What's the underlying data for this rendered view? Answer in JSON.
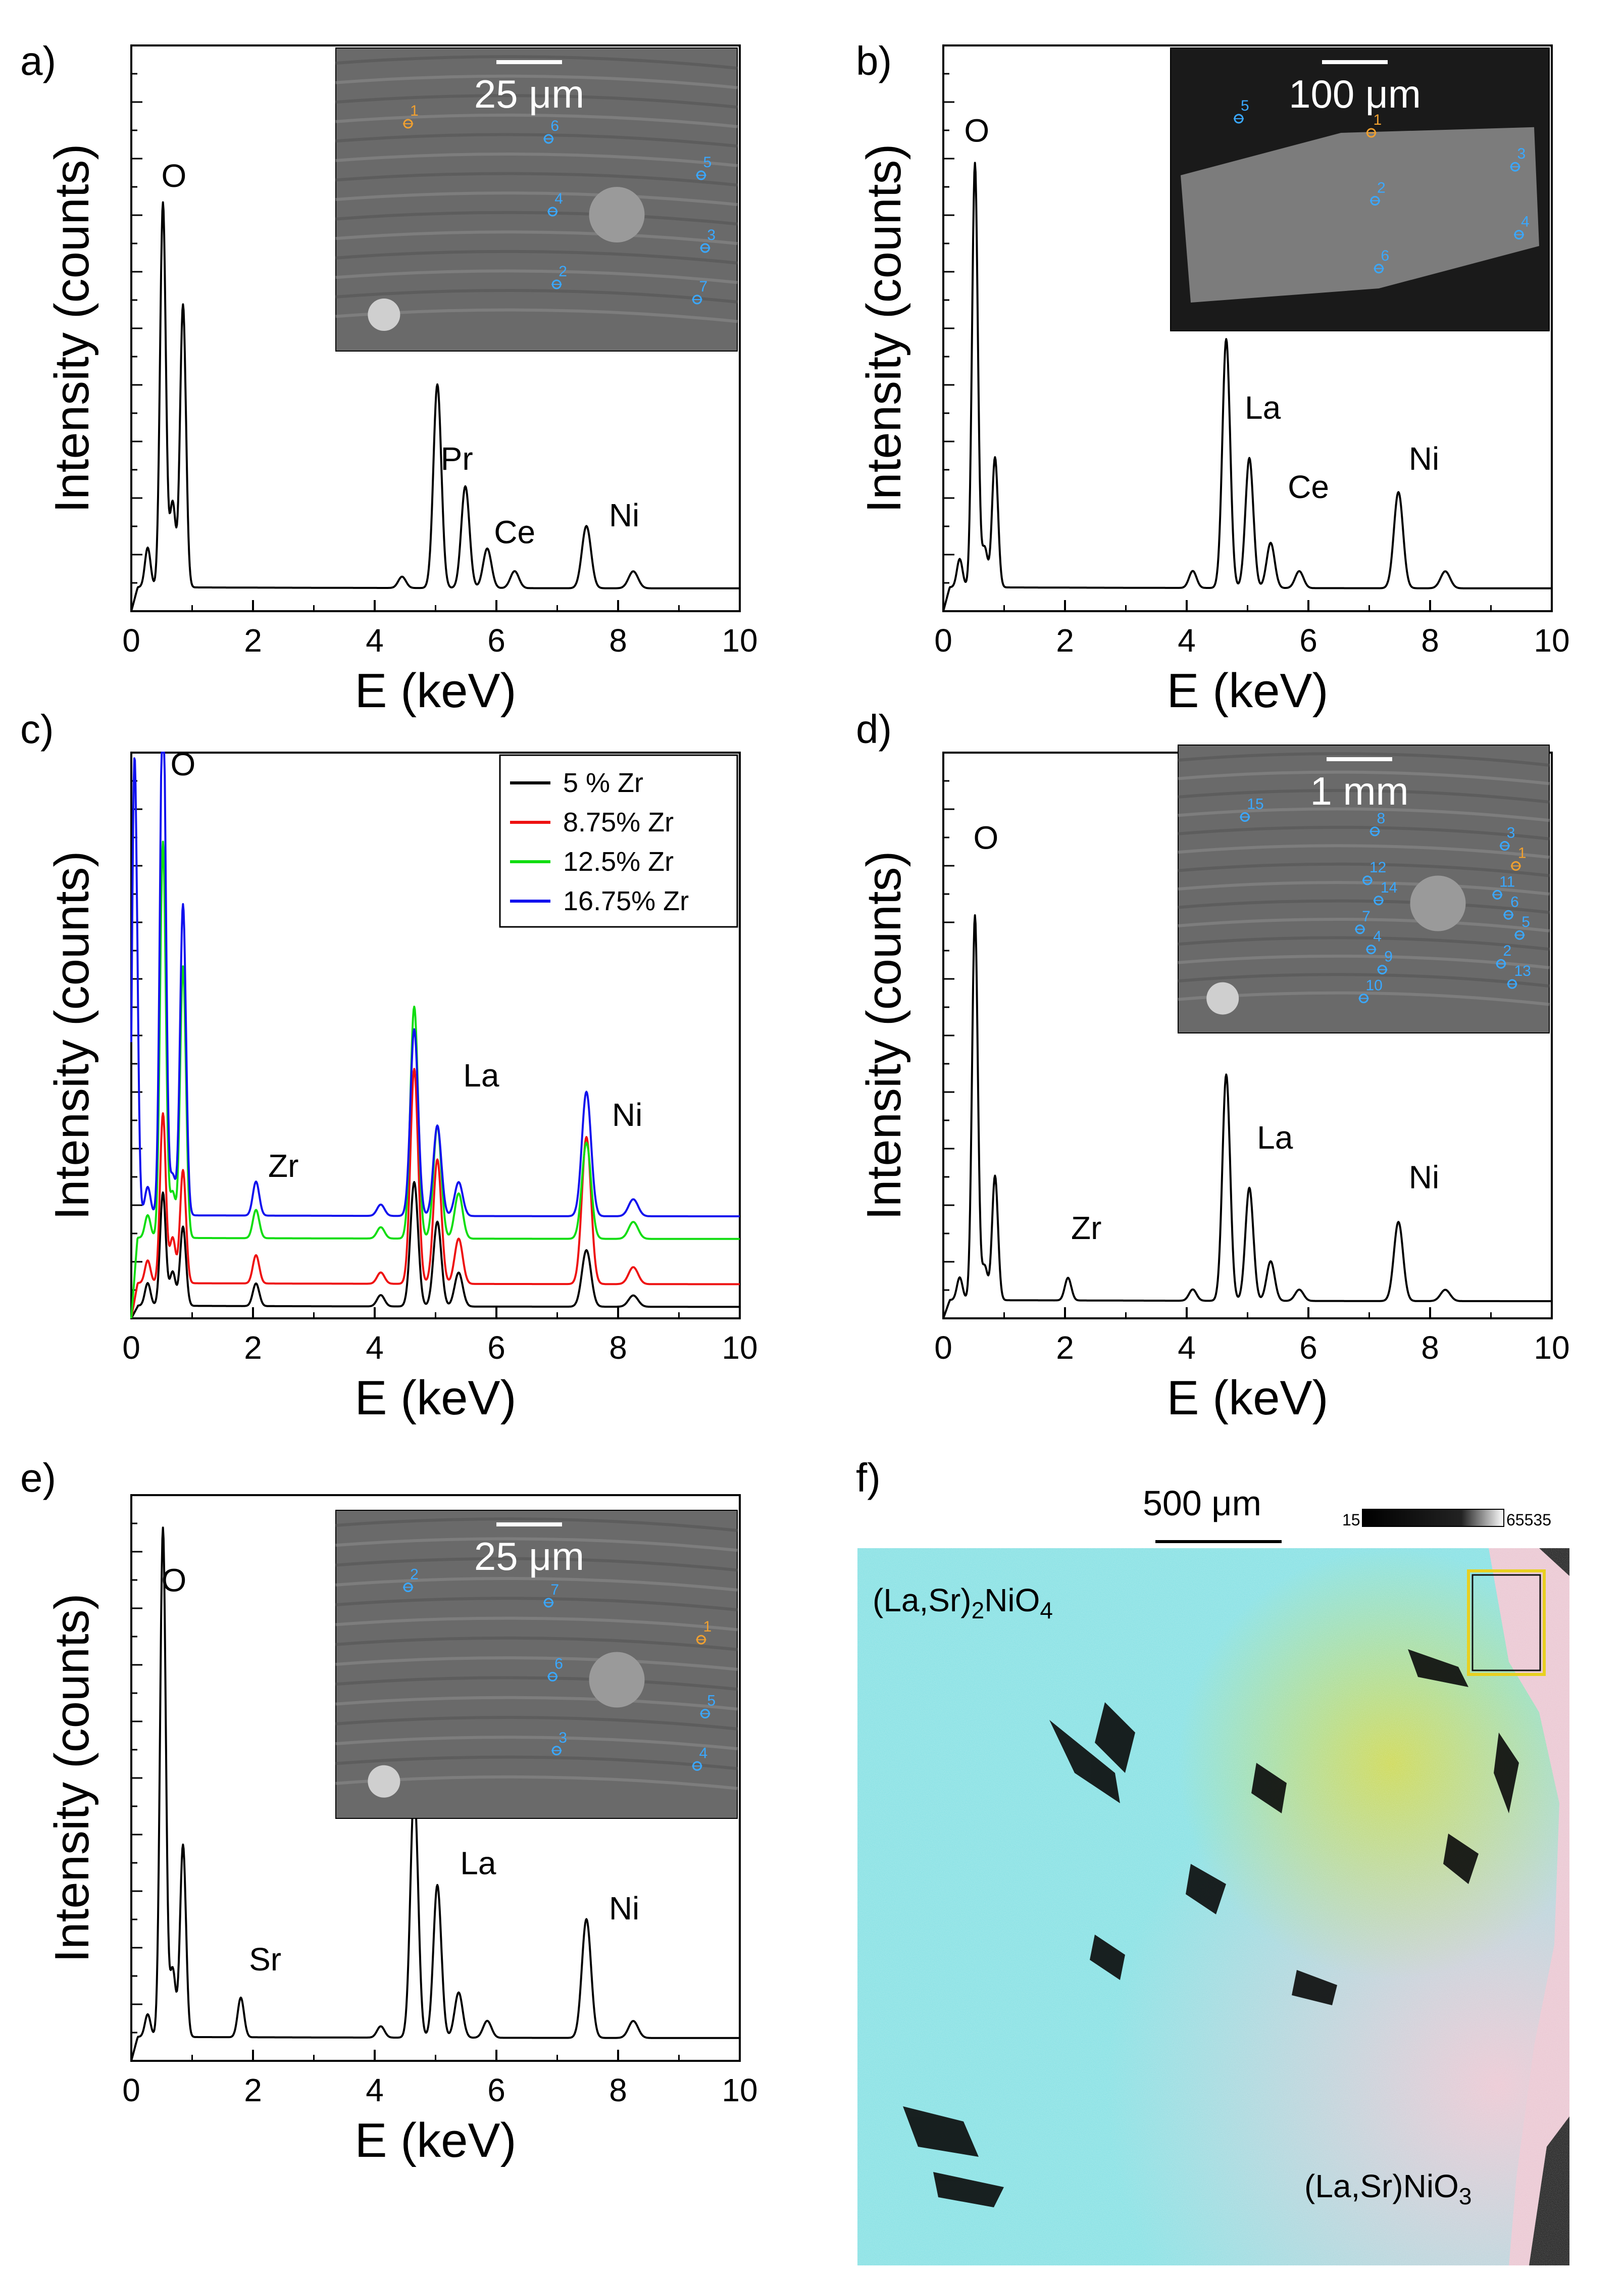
{
  "panels": [
    {
      "id": "a",
      "letter": "a)",
      "chart": {
        "type": "line",
        "xlabel": "E (keV)",
        "ylabel": "Intensity (counts)",
        "xlim": [
          0,
          10
        ],
        "xticks": [
          0,
          2,
          4,
          6,
          8,
          10
        ],
        "ylim": [
          0,
          100
        ],
        "peaks": [
          {
            "e": 0.27,
            "h": 7
          },
          {
            "e": 0.52,
            "h": 68
          },
          {
            "e": 0.68,
            "h": 15
          },
          {
            "e": 0.85,
            "h": 50
          },
          {
            "e": 4.45,
            "h": 2
          },
          {
            "e": 5.03,
            "h": 36
          },
          {
            "e": 5.49,
            "h": 18
          },
          {
            "e": 5.85,
            "h": 7
          },
          {
            "e": 6.3,
            "h": 3
          },
          {
            "e": 7.48,
            "h": 11
          },
          {
            "e": 8.25,
            "h": 3
          }
        ],
        "baseline": 4,
        "annotations": [
          {
            "text": "O",
            "x": 0.7,
            "y": 75
          },
          {
            "text": "Pr",
            "x": 5.35,
            "y": 25
          },
          {
            "text": "Ce",
            "x": 6.3,
            "y": 12
          },
          {
            "text": "Ni",
            "x": 8.1,
            "y": 15
          }
        ]
      },
      "inset": {
        "scale": "25 μm",
        "markers": [
          {
            "n": "1",
            "color": "#f0a030"
          },
          {
            "n": "2",
            "color": "#3aa8ff"
          },
          {
            "n": "3",
            "color": "#3aa8ff"
          },
          {
            "n": "4",
            "color": "#3aa8ff"
          },
          {
            "n": "5",
            "color": "#3aa8ff"
          },
          {
            "n": "6",
            "color": "#3aa8ff"
          },
          {
            "n": "7",
            "color": "#3aa8ff"
          }
        ]
      }
    },
    {
      "id": "b",
      "letter": "b)",
      "chart": {
        "type": "line",
        "xlabel": "E (keV)",
        "ylabel": "Intensity (counts)",
        "xlim": [
          0,
          10
        ],
        "xticks": [
          0,
          2,
          4,
          6,
          8,
          10
        ],
        "ylim": [
          0,
          100
        ],
        "peaks": [
          {
            "e": 0.27,
            "h": 5
          },
          {
            "e": 0.52,
            "h": 75
          },
          {
            "e": 0.68,
            "h": 7
          },
          {
            "e": 0.85,
            "h": 23
          },
          {
            "e": 4.1,
            "h": 3
          },
          {
            "e": 4.65,
            "h": 44
          },
          {
            "e": 5.03,
            "h": 23
          },
          {
            "e": 5.38,
            "h": 8
          },
          {
            "e": 5.85,
            "h": 3
          },
          {
            "e": 7.48,
            "h": 17
          },
          {
            "e": 8.25,
            "h": 3
          }
        ],
        "baseline": 4,
        "annotations": [
          {
            "text": "O",
            "x": 0.55,
            "y": 83
          },
          {
            "text": "La",
            "x": 5.25,
            "y": 34
          },
          {
            "text": "Ce",
            "x": 6.0,
            "y": 20
          },
          {
            "text": "Ni",
            "x": 7.9,
            "y": 25
          }
        ]
      },
      "inset": {
        "scale": "100 μm",
        "markers": [
          {
            "n": "5",
            "color": "#3aa8ff"
          },
          {
            "n": "6",
            "color": "#3aa8ff"
          },
          {
            "n": "4",
            "color": "#3aa8ff"
          },
          {
            "n": "2",
            "color": "#3aa8ff"
          },
          {
            "n": "3",
            "color": "#3aa8ff"
          },
          {
            "n": "1",
            "color": "#f0a030"
          }
        ]
      }
    },
    {
      "id": "c",
      "letter": "c)",
      "chart": {
        "type": "line",
        "xlabel": "E (keV)",
        "ylabel": "Intensity (counts)",
        "xlim": [
          0,
          10
        ],
        "xticks": [
          0,
          2,
          4,
          6,
          8,
          10
        ],
        "ylim": [
          0,
          100
        ],
        "series": [
          {
            "name": "5 % Zr",
            "color": "#000000",
            "offset": 2,
            "peaks": [
              {
                "e": 0.27,
                "h": 4
              },
              {
                "e": 0.52,
                "h": 20
              },
              {
                "e": 0.68,
                "h": 6
              },
              {
                "e": 0.85,
                "h": 14
              },
              {
                "e": 2.05,
                "h": 4
              },
              {
                "e": 4.1,
                "h": 2
              },
              {
                "e": 4.65,
                "h": 22
              },
              {
                "e": 5.03,
                "h": 15
              },
              {
                "e": 5.38,
                "h": 6
              },
              {
                "e": 7.48,
                "h": 10
              },
              {
                "e": 8.25,
                "h": 2
              }
            ]
          },
          {
            "name": "8.75% Zr",
            "color": "#ee1111",
            "offset": 6,
            "peaks": [
              {
                "e": 0.27,
                "h": 4
              },
              {
                "e": 0.52,
                "h": 30
              },
              {
                "e": 0.68,
                "h": 8
              },
              {
                "e": 0.85,
                "h": 20
              },
              {
                "e": 2.05,
                "h": 5
              },
              {
                "e": 4.1,
                "h": 2
              },
              {
                "e": 4.65,
                "h": 38
              },
              {
                "e": 5.03,
                "h": 22
              },
              {
                "e": 5.38,
                "h": 8
              },
              {
                "e": 7.48,
                "h": 26
              },
              {
                "e": 8.25,
                "h": 3
              }
            ]
          },
          {
            "name": "12.5% Zr",
            "color": "#11dd11",
            "offset": 14,
            "peaks": [
              {
                "e": 0.27,
                "h": 4
              },
              {
                "e": 0.52,
                "h": 70
              },
              {
                "e": 0.68,
                "h": 8
              },
              {
                "e": 0.85,
                "h": 48
              },
              {
                "e": 2.05,
                "h": 5
              },
              {
                "e": 4.1,
                "h": 2
              },
              {
                "e": 4.65,
                "h": 41
              },
              {
                "e": 5.03,
                "h": 20
              },
              {
                "e": 5.38,
                "h": 8
              },
              {
                "e": 7.48,
                "h": 17
              },
              {
                "e": 8.25,
                "h": 3
              }
            ]
          },
          {
            "name": "16.75% Zr",
            "color": "#1111ee",
            "offset": 18,
            "peaks": [
              {
                "e": 0.05,
                "h": 90
              },
              {
                "e": 0.27,
                "h": 5
              },
              {
                "e": 0.52,
                "h": 95
              },
              {
                "e": 0.68,
                "h": 7
              },
              {
                "e": 0.85,
                "h": 55
              },
              {
                "e": 2.05,
                "h": 6
              },
              {
                "e": 4.1,
                "h": 2
              },
              {
                "e": 4.65,
                "h": 33
              },
              {
                "e": 5.03,
                "h": 16
              },
              {
                "e": 5.38,
                "h": 6
              },
              {
                "e": 7.48,
                "h": 22
              },
              {
                "e": 8.25,
                "h": 3
              }
            ]
          }
        ],
        "annotations": [
          {
            "text": "O",
            "x": 0.85,
            "y": 96
          },
          {
            "text": "Zr",
            "x": 2.5,
            "y": 25
          },
          {
            "text": "La",
            "x": 5.75,
            "y": 41
          },
          {
            "text": "Ni",
            "x": 8.15,
            "y": 34
          }
        ],
        "legend_position": "top-right"
      }
    },
    {
      "id": "d",
      "letter": "d)",
      "chart": {
        "type": "line",
        "xlabel": "E (keV)",
        "ylabel": "Intensity (counts)",
        "xlim": [
          0,
          10
        ],
        "xticks": [
          0,
          2,
          4,
          6,
          8,
          10
        ],
        "ylim": [
          0,
          100
        ],
        "peaks": [
          {
            "e": 0.27,
            "h": 4
          },
          {
            "e": 0.52,
            "h": 68
          },
          {
            "e": 0.68,
            "h": 6
          },
          {
            "e": 0.85,
            "h": 22
          },
          {
            "e": 2.05,
            "h": 4
          },
          {
            "e": 4.1,
            "h": 2
          },
          {
            "e": 4.65,
            "h": 40
          },
          {
            "e": 5.03,
            "h": 20
          },
          {
            "e": 5.38,
            "h": 7
          },
          {
            "e": 5.85,
            "h": 2
          },
          {
            "e": 7.48,
            "h": 14
          },
          {
            "e": 8.25,
            "h": 2
          }
        ],
        "baseline": 3,
        "annotations": [
          {
            "text": "O",
            "x": 0.7,
            "y": 83
          },
          {
            "text": "Zr",
            "x": 2.35,
            "y": 14
          },
          {
            "text": "La",
            "x": 5.45,
            "y": 30
          },
          {
            "text": "Ni",
            "x": 7.9,
            "y": 23
          }
        ]
      },
      "inset": {
        "scale": "1 mm",
        "markers": [
          {
            "n": "15",
            "color": "#3aa8ff"
          },
          {
            "n": "9",
            "color": "#3aa8ff"
          },
          {
            "n": "5",
            "color": "#3aa8ff"
          },
          {
            "n": "14",
            "color": "#3aa8ff"
          },
          {
            "n": "1",
            "color": "#f0a030"
          },
          {
            "n": "8",
            "color": "#3aa8ff"
          },
          {
            "n": "13",
            "color": "#3aa8ff"
          },
          {
            "n": "4",
            "color": "#3aa8ff"
          },
          {
            "n": "6",
            "color": "#3aa8ff"
          },
          {
            "n": "12",
            "color": "#3aa8ff"
          },
          {
            "n": "3",
            "color": "#3aa8ff"
          },
          {
            "n": "10",
            "color": "#3aa8ff"
          },
          {
            "n": "2",
            "color": "#3aa8ff"
          },
          {
            "n": "7",
            "color": "#3aa8ff"
          },
          {
            "n": "11",
            "color": "#3aa8ff"
          }
        ]
      }
    },
    {
      "id": "e",
      "letter": "e)",
      "chart": {
        "type": "line",
        "xlabel": "E (keV)",
        "ylabel": "Intensity (counts)",
        "xlim": [
          0,
          10
        ],
        "xticks": [
          0,
          2,
          4,
          6,
          8,
          10
        ],
        "ylim": [
          0,
          100
        ],
        "peaks": [
          {
            "e": 0.27,
            "h": 4
          },
          {
            "e": 0.52,
            "h": 90
          },
          {
            "e": 0.68,
            "h": 12
          },
          {
            "e": 0.85,
            "h": 34
          },
          {
            "e": 1.8,
            "h": 7
          },
          {
            "e": 4.1,
            "h": 2
          },
          {
            "e": 4.65,
            "h": 44
          },
          {
            "e": 5.03,
            "h": 27
          },
          {
            "e": 5.38,
            "h": 8
          },
          {
            "e": 5.85,
            "h": 3
          },
          {
            "e": 7.48,
            "h": 21
          },
          {
            "e": 8.25,
            "h": 3
          }
        ],
        "baseline": 4,
        "annotations": [
          {
            "text": "O",
            "x": 0.7,
            "y": 83
          },
          {
            "text": "Sr",
            "x": 2.2,
            "y": 16
          },
          {
            "text": "La",
            "x": 5.7,
            "y": 33
          },
          {
            "text": "Ni",
            "x": 8.1,
            "y": 25
          }
        ]
      },
      "inset": {
        "scale": "25 μm",
        "markers": [
          {
            "n": "2",
            "color": "#3aa8ff"
          },
          {
            "n": "3",
            "color": "#3aa8ff"
          },
          {
            "n": "5",
            "color": "#3aa8ff"
          },
          {
            "n": "6",
            "color": "#3aa8ff"
          },
          {
            "n": "1",
            "color": "#f0a030"
          },
          {
            "n": "7",
            "color": "#3aa8ff"
          },
          {
            "n": "4",
            "color": "#3aa8ff"
          }
        ]
      }
    }
  ],
  "map_panel": {
    "letter": "f)",
    "scale": "500 μm",
    "colorbar_min": "15",
    "colorbar_max": "65535",
    "phase_top": {
      "pre": "(La,Sr)",
      "sub": "2",
      "post": "NiO",
      "sub2": "4"
    },
    "phase_bottom": {
      "pre": "(La,Sr)NiO",
      "sub": "3"
    },
    "colors": {
      "cyan": "#7fe0e0",
      "pink": "#e8c0cc",
      "yellow": "#c8d040",
      "dark": "#0a0a0a"
    }
  }
}
